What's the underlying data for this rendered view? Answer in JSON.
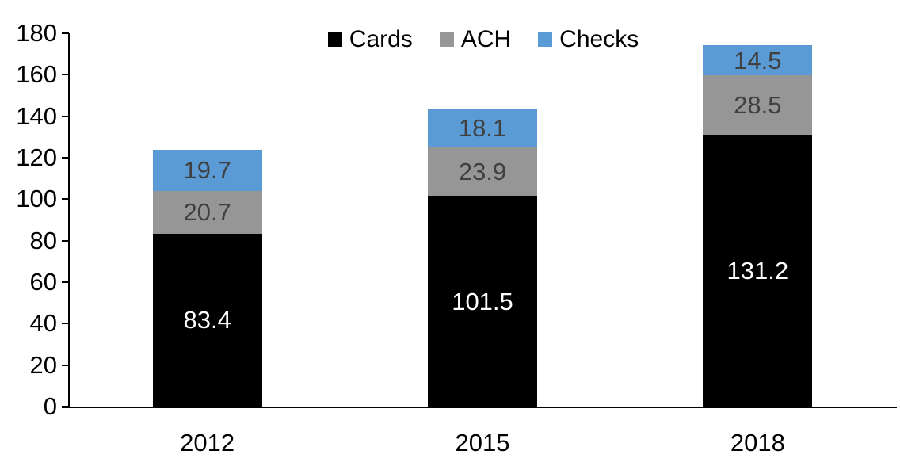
{
  "chart_data": {
    "type": "bar",
    "stacked": true,
    "title": "",
    "categories": [
      "2012",
      "2015",
      "2018"
    ],
    "series": [
      {
        "name": "Cards",
        "color": "#000000",
        "label_color": "#ffffff",
        "values": [
          83.4,
          101.5,
          131.2
        ]
      },
      {
        "name": "ACH",
        "color": "#969696",
        "label_color": "#404040",
        "values": [
          20.7,
          23.9,
          28.5
        ]
      },
      {
        "name": "Checks",
        "color": "#5b9bd5",
        "label_color": "#404040",
        "values": [
          19.7,
          18.1,
          14.5
        ]
      }
    ],
    "ylim": [
      0,
      180
    ],
    "yticks": [
      0,
      20,
      40,
      60,
      80,
      100,
      120,
      140,
      160,
      180
    ],
    "grid": false,
    "legend_position": "top-center",
    "axis_color": "#000000",
    "data_labels_visible": true,
    "label_decimals": 1
  }
}
